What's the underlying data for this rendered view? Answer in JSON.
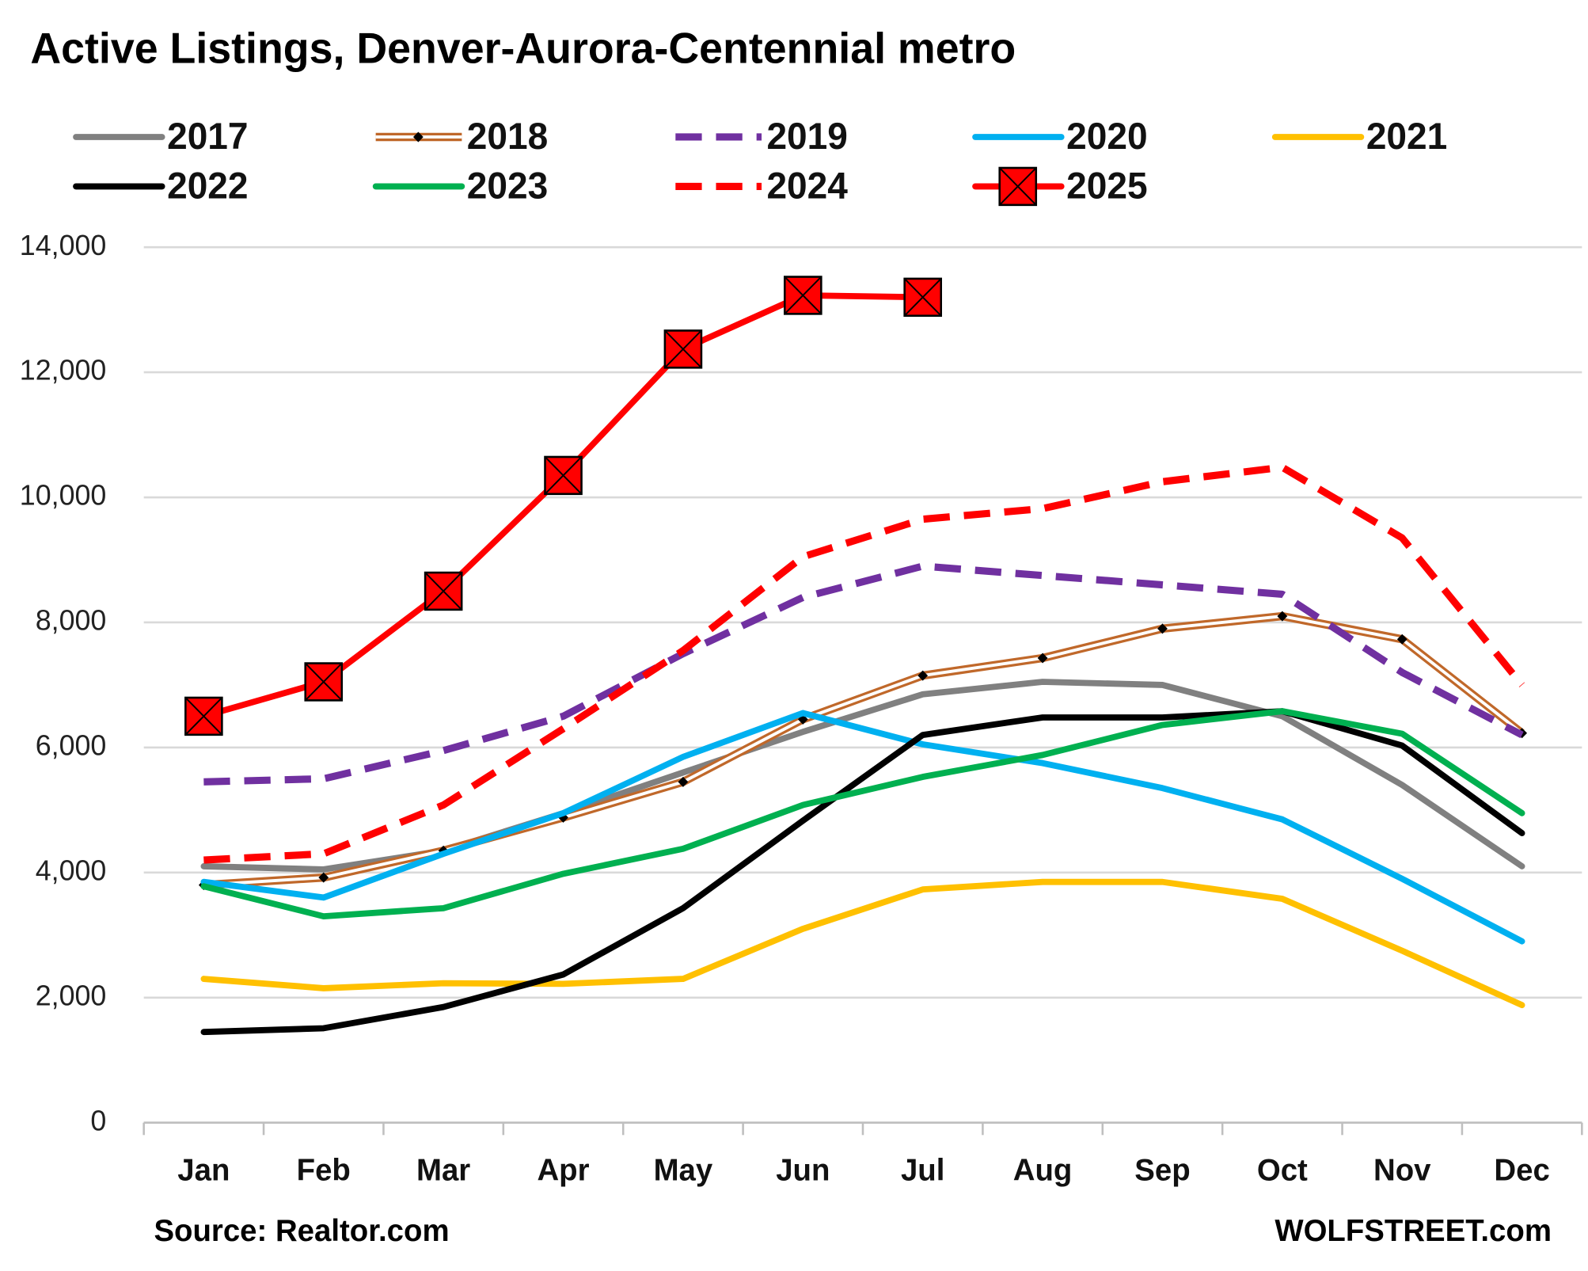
{
  "chart_data": {
    "type": "line",
    "title": "Active Listings, Denver-Aurora-Centennial metro",
    "source": "Source: Realtor.com",
    "credit": "WOLFSTREET.com",
    "categories": [
      "Jan",
      "Feb",
      "Mar",
      "Apr",
      "May",
      "Jun",
      "Jul",
      "Aug",
      "Sep",
      "Oct",
      "Nov",
      "Dec"
    ],
    "ylim": [
      0,
      14000
    ],
    "yticks": [
      {
        "value": 0,
        "label": "0"
      },
      {
        "value": 2000,
        "label": "2,000"
      },
      {
        "value": 4000,
        "label": "4,000"
      },
      {
        "value": 6000,
        "label": "6,000"
      },
      {
        "value": 8000,
        "label": "8,000"
      },
      {
        "value": 10000,
        "label": "10,000"
      },
      {
        "value": 12000,
        "label": "12,000"
      },
      {
        "value": 14000,
        "label": "14,000"
      }
    ],
    "grid": true,
    "legend": "top",
    "series": [
      {
        "name": "2017",
        "color": "#808080",
        "style": "solid",
        "values": [
          4100,
          4050,
          4350,
          4950,
          5600,
          6250,
          6850,
          7050,
          7000,
          6500,
          5400,
          4100
        ]
      },
      {
        "name": "2018",
        "color": "#c0682a",
        "style": "double",
        "marker": "diamond",
        "values": [
          3800,
          3920,
          4350,
          4880,
          5450,
          6450,
          7150,
          7430,
          7900,
          8100,
          7730,
          6230
        ]
      },
      {
        "name": "2019",
        "color": "#7030a0",
        "style": "dashed",
        "values": [
          5450,
          5500,
          5950,
          6500,
          7500,
          8400,
          8900,
          8750,
          8600,
          8450,
          7200,
          6200
        ]
      },
      {
        "name": "2020",
        "color": "#00b0f0",
        "style": "solid",
        "values": [
          3850,
          3600,
          4300,
          4950,
          5850,
          6550,
          6050,
          5750,
          5350,
          4850,
          3900,
          2900
        ]
      },
      {
        "name": "2021",
        "color": "#ffc000",
        "style": "solid",
        "values": [
          2300,
          2150,
          2230,
          2220,
          2300,
          3100,
          3730,
          3850,
          3850,
          3580,
          2750,
          1880
        ]
      },
      {
        "name": "2022",
        "color": "#000000",
        "style": "solid",
        "values": [
          1450,
          1510,
          1850,
          2370,
          3430,
          4830,
          6200,
          6480,
          6480,
          6580,
          6030,
          4630
        ]
      },
      {
        "name": "2023",
        "color": "#00b050",
        "style": "solid",
        "values": [
          3780,
          3300,
          3430,
          3980,
          4380,
          5080,
          5530,
          5880,
          6360,
          6580,
          6220,
          4950
        ]
      },
      {
        "name": "2024",
        "color": "#ff0000",
        "style": "dashed",
        "values": [
          4200,
          4300,
          5080,
          6300,
          7550,
          9050,
          9650,
          9820,
          10250,
          10480,
          9350,
          7000
        ]
      },
      {
        "name": "2025",
        "color": "#ff0000",
        "style": "solid",
        "marker": "square-x",
        "values": [
          6500,
          7050,
          8500,
          10350,
          12370,
          13230,
          13200,
          null,
          null,
          null,
          null,
          null
        ]
      }
    ]
  }
}
